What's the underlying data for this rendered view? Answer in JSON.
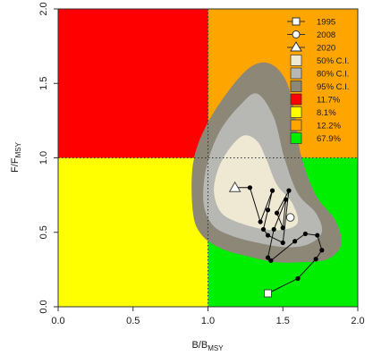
{
  "chart_data": {
    "type": "scatter",
    "title": "",
    "xlabel_main": "B/B",
    "xlabel_sub": "MSY",
    "ylabel_main": "F/F",
    "ylabel_sub": "MSY",
    "xlim": [
      0,
      2
    ],
    "ylim": [
      0,
      2
    ],
    "x_ticks": [
      "0.0",
      "0.5",
      "1.0",
      "1.5",
      "2.0"
    ],
    "y_ticks": [
      "0.0",
      "0.5",
      "1.0",
      "1.5",
      "2.0"
    ],
    "reference_lines": {
      "x": 1.0,
      "y": 1.0
    },
    "legend_position": "top-right",
    "quadrants": [
      {
        "name": "top-left",
        "color": "#ff0000",
        "percent_label": "11.7%"
      },
      {
        "name": "bottom-left",
        "color": "#ffff00",
        "percent_label": "8.1%"
      },
      {
        "name": "top-right",
        "color": "#ffa500",
        "percent_label": "12.2%"
      },
      {
        "name": "bottom-right",
        "color": "#00ee00",
        "percent_label": "67.9%"
      }
    ],
    "confidence_regions": [
      {
        "label": "95% C.I.",
        "color": "#8c8777"
      },
      {
        "label": "80% C.I.",
        "color": "#b7b8b3"
      },
      {
        "label": "50% C.I.",
        "color": "#efe9d3"
      }
    ],
    "trajectory": {
      "x": [
        1.4,
        1.6,
        1.72,
        1.76,
        1.73,
        1.65,
        1.58,
        1.42,
        1.4,
        1.44,
        1.52,
        1.5,
        1.46,
        1.54,
        1.5,
        1.4,
        1.37,
        1.4,
        1.43,
        1.35,
        1.28,
        1.2
      ],
      "y": [
        0.09,
        0.19,
        0.32,
        0.38,
        0.48,
        0.49,
        0.44,
        0.31,
        0.33,
        0.52,
        0.72,
        0.53,
        0.63,
        0.78,
        0.43,
        0.48,
        0.52,
        0.65,
        0.78,
        0.57,
        0.8,
        0.8
      ]
    },
    "markers": [
      {
        "label": "1995",
        "shape": "square",
        "x": 1.4,
        "y": 0.09
      },
      {
        "label": "2008",
        "shape": "circle",
        "x": 1.55,
        "y": 0.6
      },
      {
        "label": "2020",
        "shape": "triangle",
        "x": 1.18,
        "y": 0.8
      }
    ],
    "legend": [
      {
        "label": "1995",
        "kind": "square"
      },
      {
        "label": "2008",
        "kind": "circle"
      },
      {
        "label": "2020",
        "kind": "triangle"
      },
      {
        "label": "50% C.I.",
        "kind": "box",
        "color": "#efe9d3"
      },
      {
        "label": "80% C.I.",
        "kind": "box",
        "color": "#b7b8b3"
      },
      {
        "label": "95% C.I.",
        "kind": "box",
        "color": "#8c8777"
      },
      {
        "label": "11.7%",
        "kind": "box",
        "color": "#ff0000"
      },
      {
        "label": "8.1%",
        "kind": "box",
        "color": "#ffff00"
      },
      {
        "label": "12.2%",
        "kind": "box",
        "color": "#ffa500"
      },
      {
        "label": "67.9%",
        "kind": "box",
        "color": "#00ee00"
      }
    ]
  }
}
